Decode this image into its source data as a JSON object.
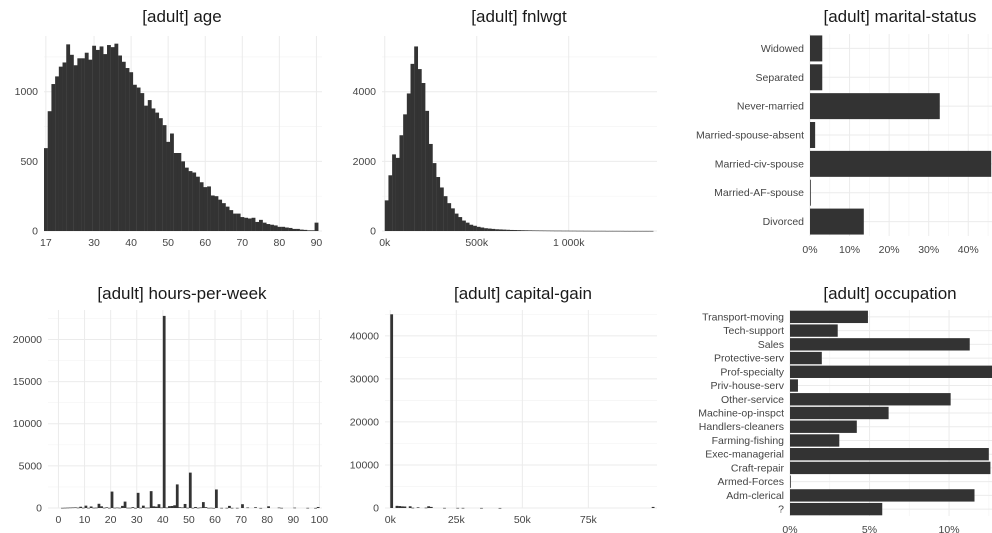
{
  "chart_data": [
    {
      "type": "bar",
      "title": "[adult] age",
      "bin_width": 1,
      "x": [
        17,
        18,
        19,
        20,
        21,
        22,
        23,
        24,
        25,
        26,
        27,
        28,
        29,
        30,
        31,
        32,
        33,
        34,
        35,
        36,
        37,
        38,
        39,
        40,
        41,
        42,
        43,
        44,
        45,
        46,
        47,
        48,
        49,
        50,
        51,
        52,
        53,
        54,
        55,
        56,
        57,
        58,
        59,
        60,
        61,
        62,
        63,
        64,
        65,
        66,
        67,
        68,
        69,
        70,
        71,
        72,
        73,
        74,
        75,
        76,
        77,
        78,
        79,
        80,
        81,
        82,
        83,
        84,
        85,
        86,
        87,
        88,
        89,
        90
      ],
      "values": [
        595,
        860,
        1055,
        1110,
        1180,
        1210,
        1340,
        1265,
        1190,
        1240,
        1240,
        1280,
        1230,
        1330,
        1300,
        1325,
        1270,
        1335,
        1320,
        1345,
        1260,
        1215,
        1170,
        1140,
        1050,
        1030,
        990,
        900,
        940,
        880,
        850,
        810,
        760,
        640,
        700,
        560,
        560,
        500,
        455,
        430,
        420,
        390,
        350,
        315,
        320,
        255,
        250,
        225,
        200,
        175,
        150,
        125,
        125,
        100,
        95,
        90,
        95,
        65,
        80,
        60,
        50,
        45,
        40,
        30,
        30,
        25,
        22,
        15,
        15,
        10,
        8,
        5,
        5,
        60
      ],
      "xticks": [
        "17",
        "30",
        "40",
        "50",
        "60",
        "70",
        "80",
        "90"
      ],
      "yticks": [
        "0",
        "500",
        "1000"
      ],
      "xlim": [
        16.5,
        91.5
      ],
      "ylim": [
        0,
        1400
      ]
    },
    {
      "type": "bar",
      "title": "[adult] fnlwgt",
      "x_start": 0,
      "bin_width": 20000,
      "values": [
        880,
        1600,
        2200,
        2100,
        2750,
        3350,
        3950,
        4800,
        5300,
        4650,
        4250,
        3450,
        2500,
        1950,
        1550,
        1250,
        1000,
        800,
        650,
        500,
        400,
        300,
        240,
        180,
        150,
        120,
        100,
        80,
        70,
        60,
        50,
        45,
        40,
        35,
        30,
        28,
        25,
        22,
        20,
        18,
        16,
        15,
        14,
        13,
        12,
        11,
        10,
        10,
        9,
        9,
        8,
        8,
        7,
        7,
        6,
        6,
        5,
        5,
        5,
        5,
        4,
        4,
        4,
        4,
        4,
        3,
        3,
        3,
        3,
        3,
        3,
        3,
        3
      ],
      "xticks": [
        "0k",
        "500k",
        "1 000k"
      ],
      "xtick_values": [
        0,
        500000,
        1000000
      ],
      "yticks": [
        "0",
        "2000",
        "4000"
      ],
      "xlim": [
        -15000,
        1480000
      ],
      "ylim": [
        0,
        5600
      ]
    },
    {
      "type": "bar",
      "orientation": "horizontal",
      "title": "[adult] marital-status",
      "categories": [
        "Widowed",
        "Separated",
        "Never-married",
        "Married-spouse-absent",
        "Married-civ-spouse",
        "Married-AF-spouse",
        "Divorced"
      ],
      "values": [
        3.1,
        3.1,
        32.8,
        1.3,
        45.8,
        0.1,
        13.6
      ],
      "unit": "%",
      "xticks": [
        "0%",
        "10%",
        "20%",
        "30%",
        "40%"
      ],
      "xlim": [
        0,
        46
      ]
    },
    {
      "type": "bar",
      "title": "[adult] hours-per-week",
      "bin_width": 1,
      "points": [
        [
          1,
          20
        ],
        [
          2,
          30
        ],
        [
          3,
          40
        ],
        [
          4,
          50
        ],
        [
          5,
          60
        ],
        [
          6,
          70
        ],
        [
          7,
          40
        ],
        [
          8,
          150
        ],
        [
          9,
          30
        ],
        [
          10,
          280
        ],
        [
          11,
          20
        ],
        [
          12,
          180
        ],
        [
          13,
          30
        ],
        [
          14,
          40
        ],
        [
          15,
          500
        ],
        [
          16,
          200
        ],
        [
          17,
          30
        ],
        [
          18,
          80
        ],
        [
          19,
          20
        ],
        [
          20,
          1950
        ],
        [
          21,
          30
        ],
        [
          22,
          50
        ],
        [
          23,
          30
        ],
        [
          24,
          250
        ],
        [
          25,
          760
        ],
        [
          26,
          30
        ],
        [
          27,
          30
        ],
        [
          28,
          100
        ],
        [
          29,
          10
        ],
        [
          30,
          1800
        ],
        [
          31,
          20
        ],
        [
          32,
          280
        ],
        [
          33,
          40
        ],
        [
          34,
          40
        ],
        [
          35,
          2000
        ],
        [
          36,
          200
        ],
        [
          37,
          160
        ],
        [
          38,
          450
        ],
        [
          39,
          50
        ],
        [
          40,
          22800
        ],
        [
          41,
          50
        ],
        [
          42,
          220
        ],
        [
          43,
          240
        ],
        [
          44,
          320
        ],
        [
          45,
          2800
        ],
        [
          46,
          90
        ],
        [
          47,
          60
        ],
        [
          48,
          480
        ],
        [
          49,
          30
        ],
        [
          50,
          4200
        ],
        [
          51,
          20
        ],
        [
          52,
          120
        ],
        [
          53,
          30
        ],
        [
          54,
          60
        ],
        [
          55,
          700
        ],
        [
          56,
          100
        ],
        [
          57,
          20
        ],
        [
          58,
          30
        ],
        [
          59,
          10
        ],
        [
          60,
          2200
        ],
        [
          62,
          20
        ],
        [
          64,
          20
        ],
        [
          65,
          250
        ],
        [
          66,
          20
        ],
        [
          68,
          20
        ],
        [
          70,
          450
        ],
        [
          72,
          60
        ],
        [
          75,
          90
        ],
        [
          77,
          10
        ],
        [
          80,
          200
        ],
        [
          84,
          50
        ],
        [
          85,
          20
        ],
        [
          90,
          40
        ],
        [
          95,
          20
        ],
        [
          98,
          10
        ],
        [
          99,
          120
        ]
      ],
      "xticks": [
        "0",
        "10",
        "20",
        "30",
        "40",
        "50",
        "60",
        "70",
        "80",
        "90",
        "100"
      ],
      "yticks": [
        "0",
        "5000",
        "10000",
        "15000",
        "20000"
      ],
      "xlim": [
        -4,
        101
      ],
      "ylim": [
        0,
        23500
      ]
    },
    {
      "type": "bar",
      "title": "[adult] capital-gain",
      "bin_width": 1000,
      "points": [
        [
          0,
          45000
        ],
        [
          2000,
          500
        ],
        [
          3000,
          450
        ],
        [
          4000,
          380
        ],
        [
          5000,
          350
        ],
        [
          7000,
          400
        ],
        [
          8000,
          60
        ],
        [
          10000,
          150
        ],
        [
          13000,
          80
        ],
        [
          14000,
          400
        ],
        [
          15000,
          250
        ],
        [
          20000,
          30
        ],
        [
          25000,
          30
        ],
        [
          27000,
          30
        ],
        [
          34000,
          20
        ],
        [
          41000,
          10
        ],
        [
          99000,
          250
        ]
      ],
      "xticks": [
        "0k",
        "25k",
        "50k",
        "75k"
      ],
      "xtick_values": [
        0,
        25000,
        50000,
        75000
      ],
      "yticks": [
        "0",
        "10000",
        "20000",
        "30000",
        "40000"
      ],
      "xlim": [
        -2000,
        101000
      ],
      "ylim": [
        0,
        46000
      ]
    },
    {
      "type": "bar",
      "orientation": "horizontal",
      "title": "[adult] occupation",
      "categories": [
        "Transport-moving",
        "Tech-support",
        "Sales",
        "Protective-serv",
        "Prof-specialty",
        "Priv-house-serv",
        "Other-service",
        "Machine-op-inspct",
        "Handlers-cleaners",
        "Farming-fishing",
        "Exec-managerial",
        "Craft-repair",
        "Armed-Forces",
        "Adm-clerical",
        "?"
      ],
      "values": [
        4.9,
        3.0,
        11.3,
        2.0,
        12.7,
        0.5,
        10.1,
        6.2,
        4.2,
        3.1,
        12.5,
        12.6,
        0.03,
        11.6,
        5.8
      ],
      "unit": "%",
      "xticks": [
        "0%",
        "5%",
        "10%"
      ],
      "xlim": [
        0,
        12.7
      ]
    }
  ]
}
